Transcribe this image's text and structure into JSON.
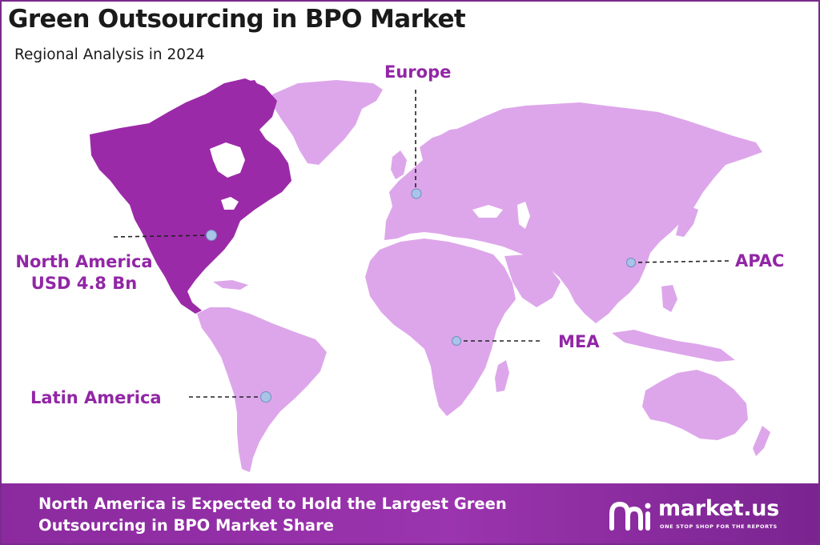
{
  "header": {
    "title": "Green Outsourcing in BPO Market",
    "subtitle": "Regional Analysis in 2024"
  },
  "colors": {
    "highlight_region": "#9b2aa8",
    "other_regions": "#dda6ea",
    "marker": "#a9c4e8",
    "label": "#9226a6",
    "footer": "#8b2a9e"
  },
  "regions": {
    "europe": {
      "label": "Europe"
    },
    "apac": {
      "label": "APAC"
    },
    "mea": {
      "label": "MEA"
    },
    "latin_america": {
      "label": "Latin America"
    },
    "north_america": {
      "label": "North America",
      "value": "USD 4.8 Bn",
      "highlighted": true
    }
  },
  "footer": {
    "line1": "North America is Expected to Hold the Largest Green",
    "line2": "Outsourcing in BPO Market Share",
    "brand_name": "market.us",
    "brand_tagline": "ONE STOP SHOP FOR THE REPORTS",
    "brand_icon": "market-us-logo-icon"
  }
}
